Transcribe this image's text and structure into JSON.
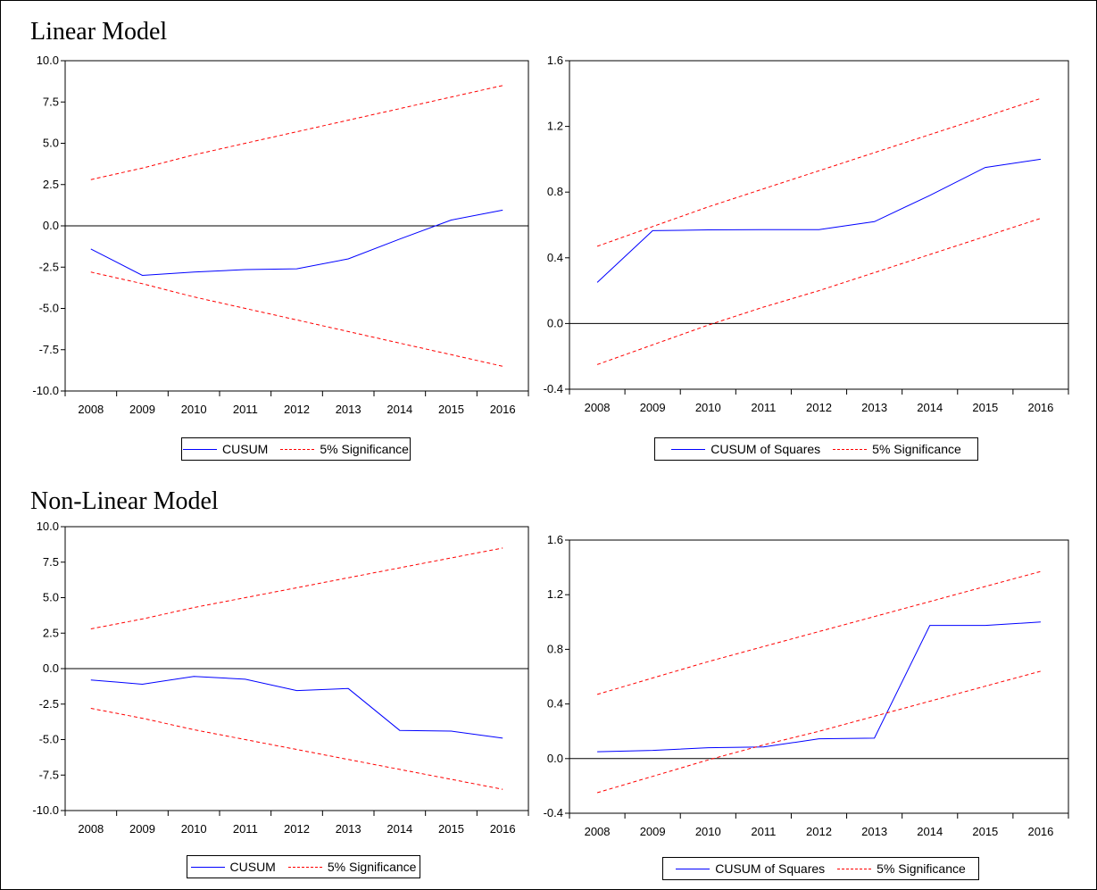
{
  "figure": {
    "sections": [
      {
        "title": "Linear Model"
      },
      {
        "title": "Non-Linear Model"
      }
    ]
  },
  "colors": {
    "stat_line": "#0000ff",
    "bands": "#ff0000",
    "zero_line": "#000000",
    "frame": "#000000"
  },
  "chart_data": [
    {
      "type": "line",
      "title": "",
      "x": [
        "2008",
        "2009",
        "2010",
        "2011",
        "2012",
        "2013",
        "2014",
        "2015",
        "2016"
      ],
      "ylim": [
        -10.0,
        10.0
      ],
      "yticks": [
        "10.0",
        "7.5",
        "5.0",
        "2.5",
        "0.0",
        "-2.5",
        "-5.0",
        "-7.5",
        "-10.0"
      ],
      "grid": false,
      "legend_position": "bottom",
      "series": [
        {
          "name": "CUSUM",
          "style": "solid",
          "values": [
            -1.4,
            -3.0,
            -2.8,
            -2.65,
            -2.6,
            -2.0,
            -0.8,
            0.35,
            0.95
          ]
        },
        {
          "name": "5% Significance",
          "style": "dashed",
          "values": [
            2.8,
            3.5,
            4.3,
            5.0,
            5.7,
            6.4,
            7.1,
            7.8,
            8.5
          ]
        },
        {
          "name": "",
          "style": "dashed",
          "values": [
            -2.8,
            -3.5,
            -4.3,
            -5.0,
            -5.7,
            -6.4,
            -7.1,
            -7.8,
            -8.5
          ]
        }
      ],
      "legend": {
        "solid_label": "CUSUM",
        "dashed_label": "5% Significance"
      }
    },
    {
      "type": "line",
      "title": "",
      "x": [
        "2008",
        "2009",
        "2010",
        "2011",
        "2012",
        "2013",
        "2014",
        "2015",
        "2016"
      ],
      "ylim": [
        -0.4,
        1.6
      ],
      "yticks": [
        "1.6",
        "1.2",
        "0.8",
        "0.4",
        "0.0",
        "-0.4"
      ],
      "grid": false,
      "legend_position": "bottom",
      "series": [
        {
          "name": "CUSUM of Squares",
          "style": "solid",
          "values": [
            0.25,
            0.565,
            0.57,
            0.572,
            0.572,
            0.62,
            0.78,
            0.95,
            1.0
          ]
        },
        {
          "name": "5% Significance",
          "style": "dashed",
          "values": [
            0.47,
            0.59,
            0.71,
            0.82,
            0.93,
            1.04,
            1.15,
            1.26,
            1.37
          ]
        },
        {
          "name": "",
          "style": "dashed",
          "values": [
            -0.25,
            -0.13,
            -0.01,
            0.1,
            0.2,
            0.31,
            0.42,
            0.53,
            0.64
          ]
        }
      ],
      "legend": {
        "solid_label": "CUSUM of Squares",
        "dashed_label": "5% Significance"
      }
    },
    {
      "type": "line",
      "title": "",
      "x": [
        "2008",
        "2009",
        "2010",
        "2011",
        "2012",
        "2013",
        "2014",
        "2015",
        "2016"
      ],
      "ylim": [
        -10.0,
        10.0
      ],
      "yticks": [
        "10.0",
        "7.5",
        "5.0",
        "2.5",
        "0.0",
        "-2.5",
        "-5.0",
        "-7.5",
        "-10.0"
      ],
      "grid": false,
      "legend_position": "bottom",
      "series": [
        {
          "name": "CUSUM",
          "style": "solid",
          "values": [
            -0.8,
            -1.1,
            -0.55,
            -0.75,
            -1.55,
            -1.4,
            -4.35,
            -4.4,
            -4.9
          ]
        },
        {
          "name": "5% Significance",
          "style": "dashed",
          "values": [
            2.8,
            3.5,
            4.3,
            5.0,
            5.7,
            6.4,
            7.1,
            7.8,
            8.5
          ]
        },
        {
          "name": "",
          "style": "dashed",
          "values": [
            -2.8,
            -3.5,
            -4.3,
            -5.0,
            -5.7,
            -6.4,
            -7.1,
            -7.8,
            -8.5
          ]
        }
      ],
      "legend": {
        "solid_label": "CUSUM",
        "dashed_label": "5% Significance"
      }
    },
    {
      "type": "line",
      "title": "",
      "x": [
        "2008",
        "2009",
        "2010",
        "2011",
        "2012",
        "2013",
        "2014",
        "2015",
        "2016"
      ],
      "ylim": [
        -0.4,
        1.6
      ],
      "yticks": [
        "1.6",
        "1.2",
        "0.8",
        "0.4",
        "0.0",
        "-0.4"
      ],
      "grid": false,
      "legend_position": "bottom",
      "series": [
        {
          "name": "CUSUM of Squares",
          "style": "solid",
          "values": [
            0.05,
            0.06,
            0.08,
            0.085,
            0.145,
            0.15,
            0.975,
            0.975,
            1.0
          ]
        },
        {
          "name": "5% Significance",
          "style": "dashed",
          "values": [
            0.47,
            0.59,
            0.71,
            0.82,
            0.93,
            1.04,
            1.15,
            1.26,
            1.37
          ]
        },
        {
          "name": "",
          "style": "dashed",
          "values": [
            -0.25,
            -0.13,
            -0.01,
            0.1,
            0.2,
            0.31,
            0.42,
            0.53,
            0.64
          ]
        }
      ],
      "legend": {
        "solid_label": "CUSUM of Squares",
        "dashed_label": "5% Significance"
      }
    }
  ]
}
